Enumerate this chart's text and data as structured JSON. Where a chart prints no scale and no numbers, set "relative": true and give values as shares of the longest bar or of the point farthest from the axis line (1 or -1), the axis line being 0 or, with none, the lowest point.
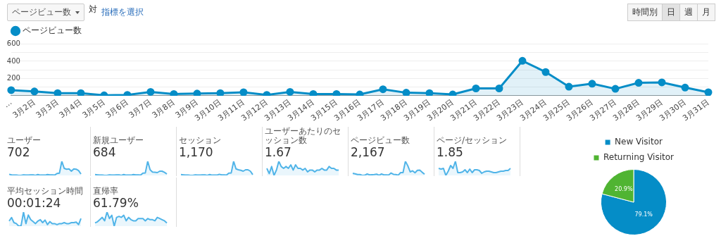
{
  "chart_data": [
    {
      "type": "area",
      "legend": "top left",
      "grid": "y",
      "marker": "circle",
      "annotations": [
        "ページビュー数",
        "対",
        "指標を選択",
        "時間別",
        "日",
        "週",
        "月"
      ],
      "categories": [
        "…",
        "3月2日",
        "3月3日",
        "3月4日",
        "3月5日",
        "3月6日",
        "3月7日",
        "3月8日",
        "3月9日",
        "3月10日",
        "3月11日",
        "3月12日",
        "3月13日",
        "3月14日",
        "3月15日",
        "3月16日",
        "3月17日",
        "3月18日",
        "3月19日",
        "3月20日",
        "3月21日",
        "3月22日",
        "3月23日",
        "3月24日",
        "3月25日",
        "3月26日",
        "3月27日",
        "3月28日",
        "3月29日",
        "3月30日",
        "3月31日"
      ],
      "ylim": [
        0,
        620
      ],
      "yticks": [
        {
          "value": 0,
          "label": null
        },
        {
          "value": 100,
          "label": null
        },
        200,
        {
          "value": 300,
          "label": null
        },
        400,
        {
          "value": 500,
          "label": null
        },
        600
      ],
      "series": [
        {
          "name": "ページビュー数",
          "color": "#058dc7",
          "values": [
            65,
            50,
            30,
            30,
            5,
            10,
            45,
            20,
            25,
            30,
            40,
            10,
            45,
            20,
            20,
            15,
            75,
            35,
            30,
            15,
            85,
            85,
            405,
            275,
            105,
            140,
            80,
            150,
            155,
            95,
            40
          ]
        }
      ]
    },
    {
      "type": "area",
      "relative": true,
      "title": "ユーザー",
      "subtitle": "702",
      "categories": [
        null,
        null,
        null,
        null,
        null,
        null,
        null,
        null,
        null,
        null,
        null,
        null,
        null,
        null,
        null,
        null,
        null,
        null,
        null,
        null,
        null,
        null,
        null,
        null,
        null,
        null,
        null,
        null,
        null,
        null,
        null
      ],
      "series": [
        {
          "color": "#50b4e8",
          "values": [
            0.08,
            0.04,
            0.02,
            0.02,
            0,
            0,
            0.04,
            0.02,
            0.02,
            0.04,
            0.04,
            0,
            0.06,
            0.02,
            0.02,
            0.02,
            0.06,
            0.04,
            0.04,
            0.02,
            0.14,
            0.16,
            1,
            0.5,
            0.44,
            0.46,
            0.3,
            0.46,
            0.44,
            0.34,
            0.1
          ]
        }
      ]
    },
    {
      "type": "area",
      "relative": true,
      "title": "新規ユーザー",
      "subtitle": "684",
      "categories": [
        null,
        null,
        null,
        null,
        null,
        null,
        null,
        null,
        null,
        null,
        null,
        null,
        null,
        null,
        null,
        null,
        null,
        null,
        null,
        null,
        null,
        null,
        null,
        null,
        null,
        null,
        null,
        null,
        null,
        null,
        null
      ],
      "series": [
        {
          "color": "#50b4e8",
          "values": [
            0.06,
            0.04,
            0.02,
            0.02,
            0,
            0,
            0.04,
            0.02,
            0.02,
            0.04,
            0.04,
            0,
            0.06,
            0.02,
            0.02,
            0.02,
            0.06,
            0.04,
            0.04,
            0.02,
            0.16,
            0.18,
            1,
            0.4,
            0.24,
            0.22,
            0.2,
            0.3,
            0.3,
            0.22,
            0.1
          ]
        }
      ]
    },
    {
      "type": "area",
      "relative": true,
      "title": "セッション",
      "subtitle": "1,170",
      "categories": [
        null,
        null,
        null,
        null,
        null,
        null,
        null,
        null,
        null,
        null,
        null,
        null,
        null,
        null,
        null,
        null,
        null,
        null,
        null,
        null,
        null,
        null,
        null,
        null,
        null,
        null,
        null,
        null,
        null,
        null,
        null
      ],
      "series": [
        {
          "color": "#50b4e8",
          "values": [
            0.06,
            0.04,
            0.02,
            0.02,
            0,
            0,
            0.04,
            0.02,
            0.02,
            0.04,
            0.04,
            0,
            0.06,
            0.02,
            0.02,
            0.02,
            0.08,
            0.04,
            0.04,
            0.02,
            0.16,
            0.18,
            1,
            0.46,
            0.4,
            0.36,
            0.3,
            0.4,
            0.4,
            0.3,
            0.06
          ]
        }
      ]
    },
    {
      "type": "area",
      "relative": true,
      "title": "ユーザーあたりのセッション数",
      "subtitle": "1.67",
      "categories": [
        null,
        null,
        null,
        null,
        null,
        null,
        null,
        null,
        null,
        null,
        null,
        null,
        null,
        null,
        null,
        null,
        null,
        null,
        null,
        null,
        null,
        null,
        null,
        null,
        null,
        null,
        null,
        null,
        null,
        null,
        null
      ],
      "series": [
        {
          "color": "#50b4e8",
          "values": [
            0.5,
            0.13,
            0.63,
            0,
            0.38,
            1,
            0.63,
            0.5,
            0.63,
            0.5,
            0.75,
            0.38,
            0.75,
            0.5,
            0.5,
            0.38,
            0.5,
            0.25,
            0.38,
            0.38,
            0.25,
            0.38,
            0.38,
            0.5,
            0.38,
            0.38,
            0.63,
            0.5,
            0.5,
            0.38,
            0.38
          ]
        }
      ]
    },
    {
      "type": "area",
      "relative": true,
      "title": "ページビュー数",
      "subtitle": "2,167",
      "categories": [
        null,
        null,
        null,
        null,
        null,
        null,
        null,
        null,
        null,
        null,
        null,
        null,
        null,
        null,
        null,
        null,
        null,
        null,
        null,
        null,
        null,
        null,
        null,
        null,
        null,
        null,
        null,
        null,
        null,
        null,
        null
      ],
      "series": [
        {
          "color": "#50b4e8",
          "values": [
            0.15,
            0.11,
            0.06,
            0.06,
            0,
            0.01,
            0.1,
            0.04,
            0.05,
            0.06,
            0.09,
            0.01,
            0.1,
            0.04,
            0.04,
            0.03,
            0.17,
            0.08,
            0.06,
            0.02,
            0.2,
            0.2,
            1,
            0.68,
            0.25,
            0.33,
            0.19,
            0.36,
            0.37,
            0.22,
            0.09
          ]
        }
      ]
    },
    {
      "type": "area",
      "relative": true,
      "title": "ページ/セッション",
      "subtitle": "1.85",
      "categories": [
        null,
        null,
        null,
        null,
        null,
        null,
        null,
        null,
        null,
        null,
        null,
        null,
        null,
        null,
        null,
        null,
        null,
        null,
        null,
        null,
        null,
        null,
        null,
        null,
        null,
        null,
        null,
        null,
        null,
        null,
        null
      ],
      "series": [
        {
          "color": "#50b4e8",
          "values": [
            0.5,
            0.45,
            0.5,
            0,
            0.3,
            0.7,
            0.5,
            1,
            0.2,
            0.2,
            0.25,
            0.4,
            0.2,
            0.45,
            0.2,
            0.4,
            0.4,
            0.35,
            0.15,
            0.25,
            0.3,
            0.3,
            0.25,
            0.2,
            0.2,
            0.25,
            0.3,
            0.3,
            0.35,
            0.35,
            0.5
          ]
        }
      ]
    },
    {
      "type": "pie",
      "legend": "top",
      "categories": [
        "New Visitor",
        "Returning Visitor"
      ],
      "values": [
        79.1,
        20.9
      ],
      "colors": [
        "#058dc7",
        "#50b432"
      ],
      "value_labels": [
        "79.1%",
        "20.9%"
      ]
    },
    {
      "type": "area",
      "relative": true,
      "title": "平均セッション時間",
      "subtitle": "00:01:24",
      "categories": [
        null,
        null,
        null,
        null,
        null,
        null,
        null,
        null,
        null,
        null,
        null,
        null,
        null,
        null,
        null,
        null,
        null,
        null,
        null,
        null,
        null,
        null,
        null,
        null,
        null,
        null,
        null,
        null,
        null,
        null,
        null
      ],
      "series": [
        {
          "color": "#50b4e8",
          "values": [
            0.36,
            0.61,
            0.25,
            0.18,
            0,
            0.04,
            1,
            0.18,
            0.79,
            0.46,
            0.32,
            0.18,
            0.36,
            0.46,
            0.25,
            0.43,
            0.11,
            0.32,
            0.18,
            0.18,
            0.11,
            0.18,
            0.18,
            0.25,
            0.18,
            0.18,
            0.25,
            0.25,
            0.29,
            0.11,
            0.54
          ]
        }
      ]
    },
    {
      "type": "area",
      "relative": true,
      "title": "直帰率",
      "subtitle": "61.79%",
      "categories": [
        null,
        null,
        null,
        null,
        null,
        null,
        null,
        null,
        null,
        null,
        null,
        null,
        null,
        null,
        null,
        null,
        null,
        null,
        null,
        null,
        null,
        null,
        null,
        null,
        null,
        null,
        null,
        null,
        null,
        null,
        null
      ],
      "series": [
        {
          "color": "#50b4e8",
          "values": [
            0.23,
            0.31,
            0.46,
            0.62,
            0.38,
            1,
            0.54,
            0.77,
            0,
            0.62,
            0.69,
            0.62,
            0.77,
            0.38,
            0.62,
            0.46,
            0.38,
            0.38,
            0.54,
            0.54,
            0.54,
            0.38,
            0.54,
            0.46,
            0.46,
            0.38,
            0.62,
            0.54,
            0.46,
            0.38,
            0.23
          ]
        }
      ]
    }
  ]
}
